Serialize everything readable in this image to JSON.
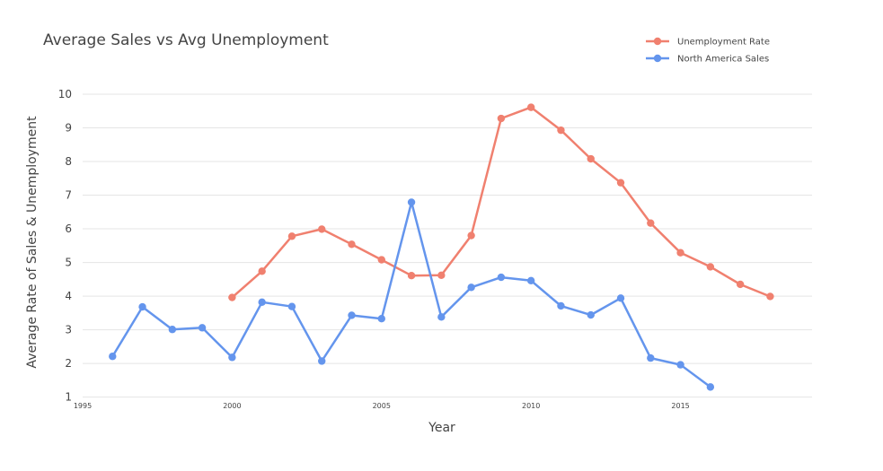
{
  "chart_data": {
    "type": "line",
    "title": "Average Sales vs Avg Unemployment",
    "xlabel": "Year",
    "ylabel": "Average Rate of Sales & Unemployment",
    "xlim": [
      1995,
      2019.4
    ],
    "ylim": [
      0.75,
      10.4
    ],
    "x_ticks": [
      1995,
      2000,
      2005,
      2010,
      2015
    ],
    "y_ticks": [
      1,
      2,
      3,
      4,
      5,
      6,
      7,
      8,
      9,
      10
    ],
    "grid": true,
    "legend_position": "top-right",
    "series": [
      {
        "name": "Unemployment Rate",
        "color": "#f0806f",
        "x": [
          2000,
          2001,
          2002,
          2003,
          2004,
          2005,
          2006,
          2007,
          2008,
          2009,
          2010,
          2011,
          2012,
          2013,
          2014,
          2015,
          2016,
          2017,
          2018
        ],
        "y": [
          3.96,
          4.74,
          5.78,
          5.99,
          5.54,
          5.08,
          4.61,
          4.62,
          5.8,
          9.28,
          9.61,
          8.93,
          8.08,
          7.37,
          6.17,
          5.29,
          4.87,
          4.35,
          3.99
        ]
      },
      {
        "name": "North America Sales",
        "color": "#6495ed",
        "x": [
          1996,
          1997,
          1998,
          1999,
          2000,
          2001,
          2002,
          2003,
          2004,
          2005,
          2006,
          2007,
          2008,
          2009,
          2010,
          2011,
          2012,
          2013,
          2014,
          2015,
          2016
        ],
        "y": [
          2.21,
          3.68,
          3.01,
          3.06,
          2.18,
          3.82,
          3.69,
          2.07,
          3.43,
          3.33,
          6.79,
          3.38,
          4.26,
          4.56,
          4.46,
          3.71,
          3.44,
          3.94,
          2.16,
          1.96,
          1.3
        ]
      }
    ]
  }
}
